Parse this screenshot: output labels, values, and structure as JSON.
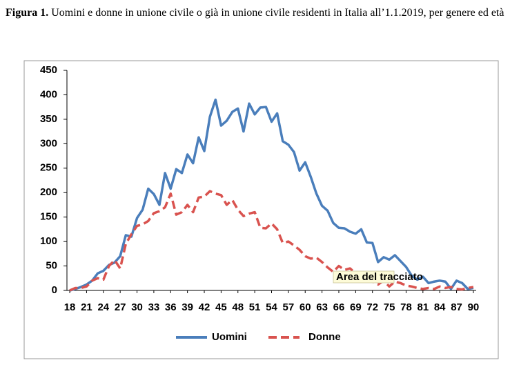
{
  "chart_data": {
    "type": "line",
    "title_label": "Figura 1.",
    "title": "Uomini e donne in unione civile o già in unione civile residenti in Italia all’1.1.2019, per genere ed età",
    "annotation": "Area del tracciato",
    "x": [
      18,
      19,
      20,
      21,
      22,
      23,
      24,
      25,
      26,
      27,
      28,
      29,
      30,
      31,
      32,
      33,
      34,
      35,
      36,
      37,
      38,
      39,
      40,
      41,
      42,
      43,
      44,
      45,
      46,
      47,
      48,
      49,
      50,
      51,
      52,
      53,
      54,
      55,
      56,
      57,
      58,
      59,
      60,
      61,
      62,
      63,
      64,
      65,
      66,
      67,
      68,
      69,
      70,
      71,
      72,
      73,
      74,
      75,
      76,
      77,
      78,
      79,
      80,
      81,
      82,
      83,
      84,
      85,
      86,
      87,
      88,
      89,
      90
    ],
    "xlim": [
      17.5,
      90.5
    ],
    "xticks": [
      18,
      21,
      24,
      27,
      30,
      33,
      36,
      39,
      42,
      45,
      48,
      51,
      54,
      57,
      60,
      63,
      66,
      69,
      72,
      75,
      78,
      81,
      84,
      87,
      90
    ],
    "ylim": [
      0,
      450
    ],
    "yticks": [
      0,
      50,
      100,
      150,
      200,
      250,
      300,
      350,
      400,
      450
    ],
    "grid": false,
    "legend": "bottom",
    "series": [
      {
        "name": "Uomini",
        "color": "#4a7ebb",
        "dash": "solid",
        "values": [
          0,
          3,
          7,
          12,
          20,
          35,
          40,
          52,
          57,
          70,
          113,
          110,
          148,
          165,
          208,
          197,
          175,
          240,
          208,
          248,
          240,
          278,
          260,
          313,
          285,
          355,
          390,
          337,
          347,
          365,
          372,
          325,
          382,
          360,
          374,
          375,
          345,
          362,
          305,
          298,
          283,
          245,
          262,
          232,
          198,
          173,
          163,
          138,
          128,
          127,
          120,
          116,
          125,
          98,
          97,
          58,
          68,
          63,
          72,
          60,
          48,
          30,
          22,
          28,
          15,
          18,
          20,
          18,
          3,
          20,
          15,
          3,
          5
        ]
      },
      {
        "name": "Donne",
        "color": "#d9534f",
        "dash": "dashed",
        "values": [
          0,
          5,
          5,
          8,
          20,
          25,
          22,
          50,
          62,
          45,
          95,
          115,
          132,
          135,
          142,
          158,
          162,
          170,
          198,
          155,
          160,
          175,
          160,
          190,
          192,
          203,
          198,
          195,
          175,
          185,
          165,
          152,
          157,
          160,
          128,
          127,
          137,
          125,
          97,
          100,
          92,
          83,
          70,
          65,
          67,
          58,
          47,
          38,
          50,
          42,
          45,
          35,
          33,
          25,
          18,
          12,
          20,
          8,
          18,
          15,
          10,
          8,
          5,
          3,
          5,
          3,
          8,
          5,
          7,
          3,
          2,
          5,
          7
        ]
      }
    ]
  }
}
